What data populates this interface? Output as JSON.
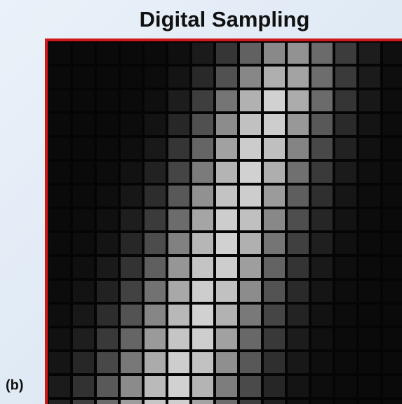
{
  "header": {
    "title": "Digital Sampling"
  },
  "panel": {
    "label": "(b)"
  }
}
